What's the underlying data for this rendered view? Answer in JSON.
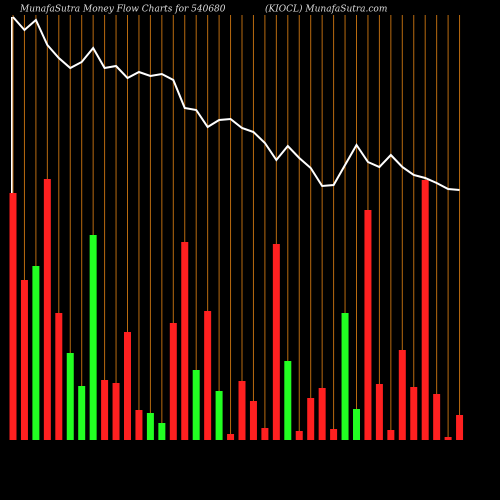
{
  "chart_data": {
    "type": "bar",
    "title": "MunafaSutra  Money Flow  Charts for 540680",
    "subtitle": "(KIOCL) MunafaSutra.com",
    "ylim": [
      0,
      430
    ],
    "series": [
      {
        "values": [
          247,
          160,
          174,
          261,
          127,
          87,
          54,
          205,
          60,
          57,
          108,
          30,
          27,
          17,
          117,
          198,
          70,
          129,
          49,
          6,
          59,
          39,
          12,
          196,
          79,
          9,
          42,
          52,
          11,
          127,
          31,
          230,
          56,
          10,
          90,
          53,
          260,
          46,
          3,
          25
        ],
        "colors": [
          "#ff2020",
          "#ff2020",
          "#22ff22",
          "#ff2020",
          "#ff2020",
          "#22ff22",
          "#22ff22",
          "#22ff22",
          "#ff2020",
          "#ff2020",
          "#ff2020",
          "#ff2020",
          "#22ff22",
          "#22ff22",
          "#ff2020",
          "#ff2020",
          "#22ff22",
          "#ff2020",
          "#22ff22",
          "#ff2020",
          "#ff2020",
          "#ff2020",
          "#ff2020",
          "#ff2020",
          "#22ff22",
          "#ff2020",
          "#ff2020",
          "#ff2020",
          "#ff2020",
          "#22ff22",
          "#22ff22",
          "#ff2020",
          "#ff2020",
          "#ff2020",
          "#ff2020",
          "#ff2020",
          "#ff2020",
          "#ff2020",
          "#ff2020",
          "#ff2020"
        ]
      },
      {
        "type": "line",
        "color": "#ffffff",
        "values": [
          423,
          410,
          420,
          395,
          382,
          372,
          378,
          392,
          372,
          374,
          362,
          368,
          364,
          366,
          360,
          332,
          330,
          313,
          320,
          321,
          312,
          308,
          297,
          280,
          294,
          282,
          272,
          254,
          255,
          275,
          295,
          278,
          273,
          285,
          273,
          265,
          262,
          257,
          251,
          250
        ]
      }
    ]
  }
}
